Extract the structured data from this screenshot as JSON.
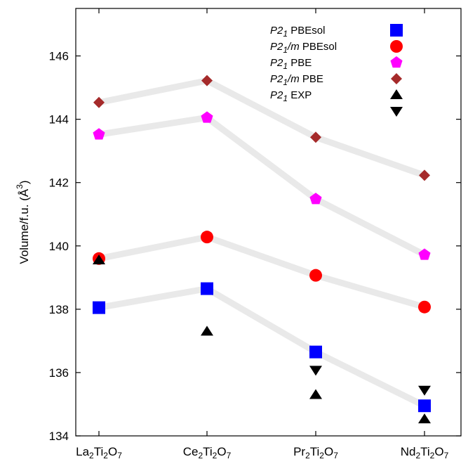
{
  "chart_data": {
    "type": "scatter",
    "title": "",
    "xlabel": "",
    "ylabel": {
      "main": "Volume/f.u. (",
      "unit": "Å",
      "sup": "3",
      "close": ")"
    },
    "ylim": [
      134,
      147.5
    ],
    "yticks": [
      134,
      136,
      138,
      140,
      142,
      144,
      146
    ],
    "grid": false,
    "legend_position": "top-right",
    "categories": [
      {
        "base": "La",
        "s1": "2",
        "mid": "Ti",
        "s2": "2",
        "tail": "O",
        "s3": "7"
      },
      {
        "base": "Ce",
        "s1": "2",
        "mid": "Ti",
        "s2": "2",
        "tail": "O",
        "s3": "7"
      },
      {
        "base": "Pr",
        "s1": "2",
        "mid": "Ti",
        "s2": "2",
        "tail": "O",
        "s3": "7"
      },
      {
        "base": "Nd",
        "s1": "2",
        "mid": "Ti",
        "s2": "2",
        "tail": "O",
        "s3": "7"
      }
    ],
    "series": [
      {
        "name_italic": "P2",
        "name_sub": "1",
        "name_rest": " PBEsol",
        "marker": "square",
        "color": "#0000ff",
        "connected": true,
        "values": [
          138.05,
          138.65,
          136.65,
          134.95
        ]
      },
      {
        "name_italic": "P2",
        "name_sub": "1",
        "name_tail_italic": "/m",
        "name_rest": " PBEsol",
        "marker": "circle",
        "color": "#ff0000",
        "connected": true,
        "values": [
          139.6,
          140.28,
          139.07,
          138.07
        ]
      },
      {
        "name_italic": "P2",
        "name_sub": "1",
        "name_rest": " PBE",
        "marker": "pentagon",
        "color": "#ff00ff",
        "connected": true,
        "values": [
          143.52,
          144.05,
          141.48,
          139.72
        ]
      },
      {
        "name_italic": "P2",
        "name_sub": "1",
        "name_tail_italic": "/m",
        "name_rest": " PBE",
        "marker": "diamond",
        "color": "#a52a2a",
        "connected": true,
        "values": [
          144.53,
          145.22,
          143.43,
          142.23
        ]
      },
      {
        "name_italic": "P2",
        "name_sub": "1",
        "name_rest": " EXP",
        "marker": "triangle-up",
        "color": "#000000",
        "connected": false,
        "values": [
          139.55,
          137.3,
          135.3,
          134.53
        ]
      },
      {
        "name_italic": "",
        "name_sub": "",
        "name_rest": "",
        "marker": "triangle-down",
        "color": "#000000",
        "connected": false,
        "values": [
          null,
          null,
          136.08,
          135.45
        ]
      }
    ]
  }
}
